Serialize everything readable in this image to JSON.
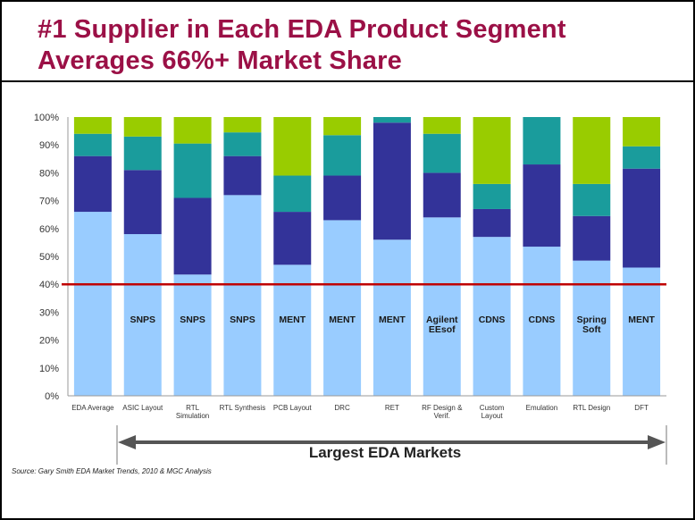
{
  "title": {
    "line1": "#1 Supplier in Each EDA Product Segment",
    "line2": "Averages 66%+ Market Share"
  },
  "source": "Source:  Gary Smith EDA Market Trends, 2010 & MGC Analysis",
  "arrow_label": "Largest EDA Markets",
  "colors": {
    "seg1": "#99ccff",
    "seg2": "#333399",
    "seg3": "#1a9c9c",
    "seg4": "#99cc00",
    "threshold": "#c00000",
    "arrow": "#555555"
  },
  "chart_data": {
    "type": "bar",
    "stacked": true,
    "ylim": [
      0,
      100
    ],
    "yticks": [
      "0%",
      "10%",
      "20%",
      "30%",
      "40%",
      "50%",
      "60%",
      "70%",
      "80%",
      "90%",
      "100%"
    ],
    "reference_line": 40,
    "categories": [
      "EDA Average",
      "ASIC Layout",
      "RTL Simulation",
      "RTL Synthesis",
      "PCB Layout",
      "DRC",
      "RET",
      "RF Design & Verif.",
      "Custom Layout",
      "Emulation",
      "RTL Design",
      "DFT"
    ],
    "category_labels": [
      [
        "EDA Average"
      ],
      [
        "ASIC Layout"
      ],
      [
        "RTL",
        "Simulation"
      ],
      [
        "RTL Synthesis"
      ],
      [
        "PCB Layout"
      ],
      [
        "DRC"
      ],
      [
        "RET"
      ],
      [
        "RF Design &",
        "Verif."
      ],
      [
        "Custom",
        "Layout"
      ],
      [
        "Emulation"
      ],
      [
        "RTL Design"
      ],
      [
        "DFT"
      ]
    ],
    "leaders": [
      [
        ""
      ],
      [
        "SNPS"
      ],
      [
        "SNPS"
      ],
      [
        "SNPS"
      ],
      [
        "MENT"
      ],
      [
        "MENT"
      ],
      [
        "MENT"
      ],
      [
        "Agilent",
        "EEsof"
      ],
      [
        "CDNS"
      ],
      [
        "CDNS"
      ],
      [
        "Spring",
        "Soft"
      ],
      [
        "MENT"
      ]
    ],
    "series": [
      {
        "values": [
          66,
          58,
          43.5,
          72,
          47,
          63,
          56,
          64,
          57,
          53.5,
          48.5,
          46
        ]
      },
      {
        "values": [
          20,
          23,
          27.5,
          14,
          19,
          16,
          42,
          16,
          10,
          29.5,
          16,
          35.5
        ]
      },
      {
        "values": [
          8,
          12,
          19.5,
          8.5,
          13,
          14.5,
          2,
          14,
          9,
          17,
          11.5,
          8
        ]
      },
      {
        "values": [
          6,
          7,
          9.5,
          5.5,
          21,
          6.5,
          0,
          6,
          24,
          0,
          24,
          10.5
        ]
      }
    ]
  }
}
